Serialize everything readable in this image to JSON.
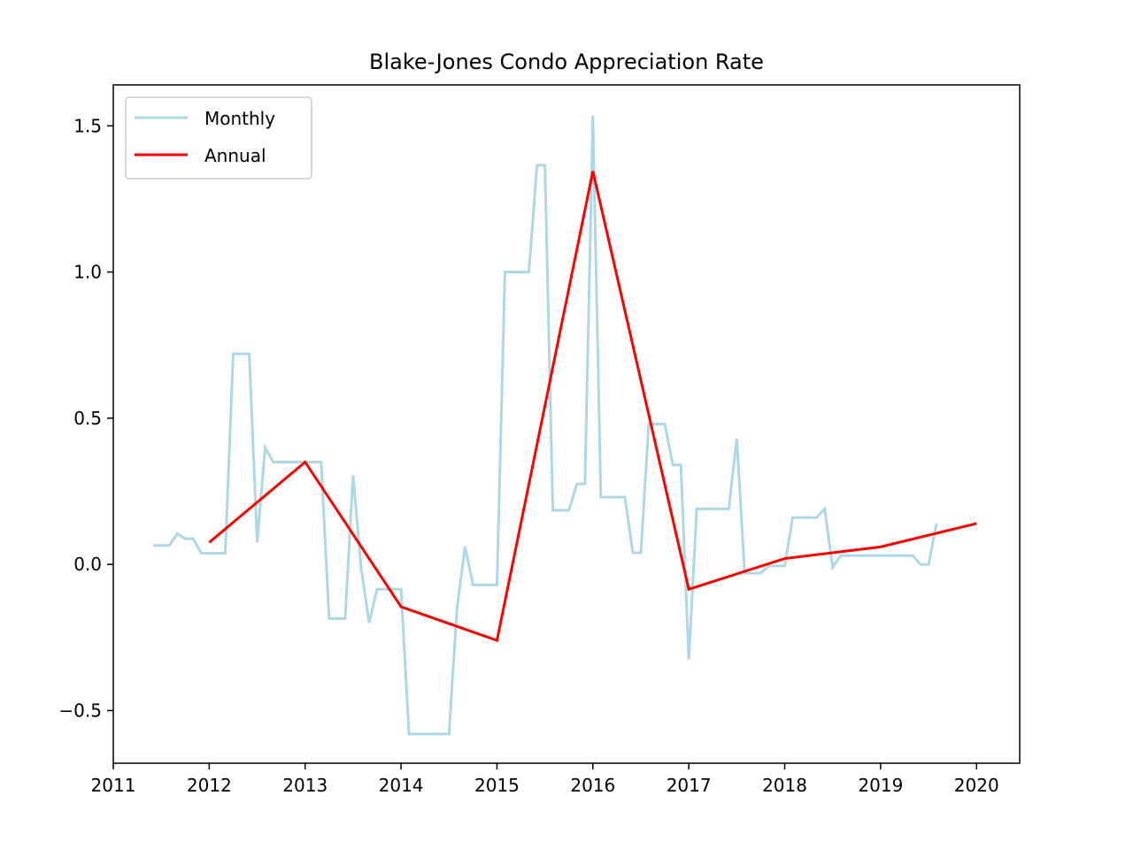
{
  "chart_data": {
    "type": "line",
    "title": "Blake-Jones Condo Appreciation Rate",
    "xlabel": "",
    "ylabel": "",
    "xlim": [
      2011.0,
      2020.45
    ],
    "ylim": [
      -0.68,
      1.64
    ],
    "x_ticks": [
      2011,
      2012,
      2013,
      2014,
      2015,
      2016,
      2017,
      2018,
      2019,
      2020
    ],
    "x_tick_labels": [
      "2011",
      "2012",
      "2013",
      "2014",
      "2015",
      "2016",
      "2017",
      "2018",
      "2019",
      "2020"
    ],
    "y_ticks": [
      -0.5,
      0.0,
      0.5,
      1.0,
      1.5
    ],
    "y_tick_labels": [
      "−0.5",
      "0.0",
      "0.5",
      "1.0",
      "1.5"
    ],
    "grid": false,
    "legend_position": "top-left",
    "series": [
      {
        "name": "Monthly",
        "color": "#add8e6",
        "x": [
          2011.417,
          2011.5,
          2011.583,
          2011.667,
          2011.75,
          2011.833,
          2011.917,
          2012.0,
          2012.083,
          2012.167,
          2012.25,
          2012.333,
          2012.417,
          2012.5,
          2012.583,
          2012.667,
          2012.75,
          2012.833,
          2012.917,
          2013.0,
          2013.083,
          2013.167,
          2013.25,
          2013.333,
          2013.417,
          2013.5,
          2013.583,
          2013.667,
          2013.75,
          2013.833,
          2013.917,
          2014.0,
          2014.083,
          2014.167,
          2014.25,
          2014.333,
          2014.417,
          2014.5,
          2014.583,
          2014.667,
          2014.75,
          2014.833,
          2014.917,
          2015.0,
          2015.083,
          2015.167,
          2015.25,
          2015.333,
          2015.417,
          2015.5,
          2015.583,
          2015.667,
          2015.75,
          2015.833,
          2015.917,
          2016.0,
          2016.083,
          2016.167,
          2016.25,
          2016.333,
          2016.417,
          2016.5,
          2016.583,
          2016.667,
          2016.75,
          2016.833,
          2016.917,
          2017.0,
          2017.083,
          2017.167,
          2017.25,
          2017.333,
          2017.417,
          2017.5,
          2017.583,
          2017.667,
          2017.75,
          2017.833,
          2017.917,
          2018.0,
          2018.083,
          2018.167,
          2018.25,
          2018.333,
          2018.417,
          2018.5,
          2018.583,
          2018.667,
          2018.75,
          2018.833,
          2018.917,
          2019.0,
          2019.083,
          2019.167,
          2019.25,
          2019.333,
          2019.417,
          2019.5,
          2019.583
        ],
        "values": [
          0.065,
          0.065,
          0.065,
          0.105,
          0.088,
          0.088,
          0.038,
          0.038,
          0.038,
          0.038,
          0.72,
          0.72,
          0.72,
          0.075,
          0.4,
          0.35,
          0.35,
          0.35,
          0.35,
          0.35,
          0.35,
          0.35,
          -0.185,
          -0.185,
          -0.185,
          0.305,
          -0.01,
          -0.2,
          -0.085,
          -0.085,
          -0.085,
          -0.085,
          -0.58,
          -0.58,
          -0.58,
          -0.58,
          -0.58,
          -0.58,
          -0.15,
          0.06,
          -0.07,
          -0.07,
          -0.07,
          -0.07,
          1.0,
          1.0,
          1.0,
          1.0,
          1.365,
          1.365,
          0.185,
          0.185,
          0.185,
          0.275,
          0.275,
          1.535,
          0.23,
          0.23,
          0.23,
          0.23,
          0.04,
          0.04,
          0.48,
          0.48,
          0.48,
          0.34,
          0.34,
          -0.325,
          0.19,
          0.19,
          0.19,
          0.19,
          0.19,
          0.43,
          -0.03,
          -0.03,
          -0.03,
          -0.005,
          -0.005,
          -0.005,
          0.16,
          0.16,
          0.16,
          0.16,
          0.19,
          -0.01,
          0.03,
          0.03,
          0.03,
          0.03,
          0.03,
          0.03,
          0.03,
          0.03,
          0.03,
          0.03,
          0.0,
          0.0,
          0.14
        ]
      },
      {
        "name": "Annual",
        "color": "#ff0000",
        "x": [
          2012,
          2013,
          2014,
          2015,
          2016,
          2017,
          2018,
          2019,
          2020
        ],
        "values": [
          0.075,
          0.35,
          -0.145,
          -0.26,
          1.345,
          -0.085,
          0.02,
          0.06,
          0.14
        ]
      }
    ]
  }
}
